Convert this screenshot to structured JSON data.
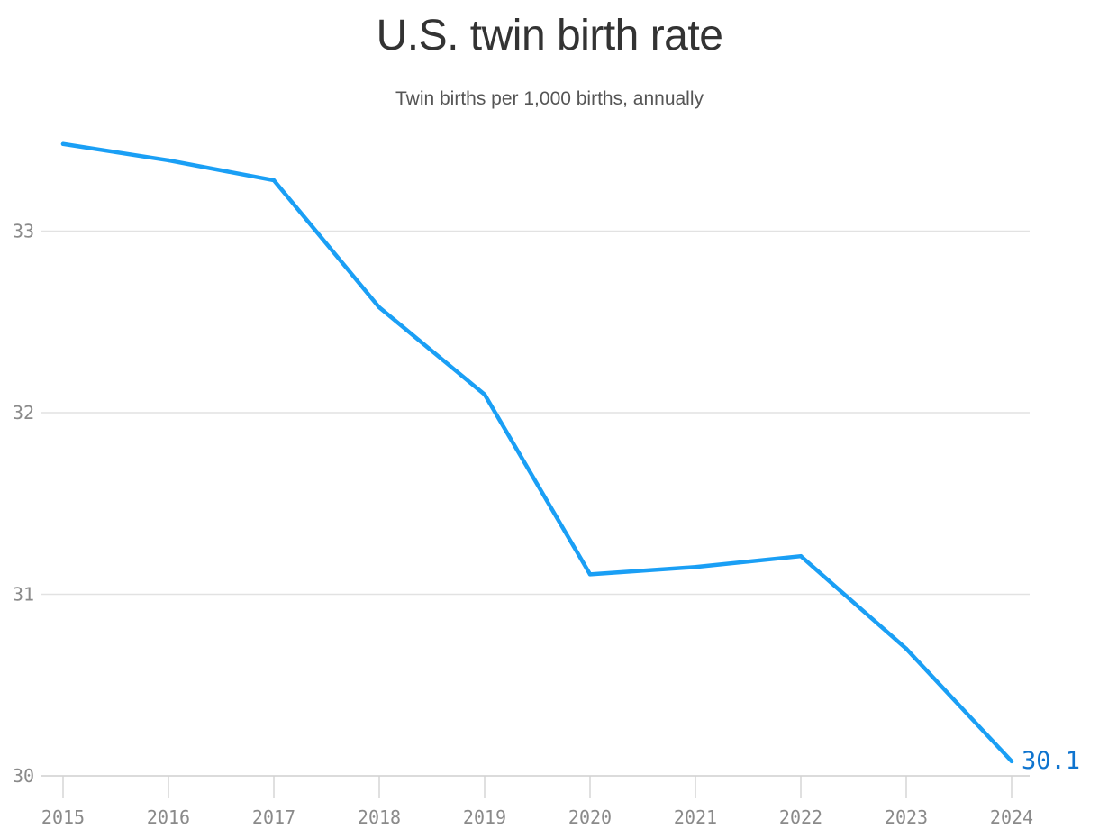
{
  "chart_data": {
    "type": "line",
    "title": "U.S. twin birth rate",
    "subtitle": "Twin births per 1,000 births, annually",
    "xlabel": "",
    "ylabel": "",
    "x": [
      "2015",
      "2016",
      "2017",
      "2018",
      "2019",
      "2020",
      "2021",
      "2022",
      "2023",
      "2024"
    ],
    "series": [
      {
        "values": [
          33.48,
          33.39,
          33.28,
          32.58,
          32.1,
          31.11,
          31.15,
          31.21,
          30.7,
          30.08
        ],
        "color": "#1a9ff5"
      }
    ],
    "ylim": [
      30,
      33.5
    ],
    "yticks": [
      "30",
      "31",
      "32",
      "33"
    ],
    "grid": "horizontal",
    "end_label": "30.1",
    "end_label_color": "#0f74cf"
  }
}
